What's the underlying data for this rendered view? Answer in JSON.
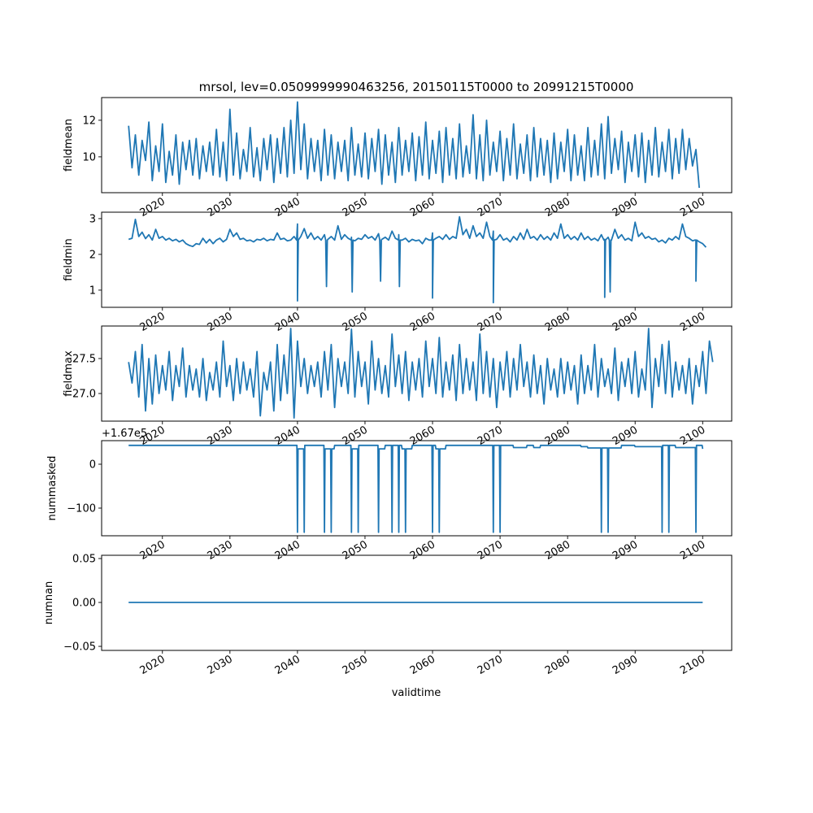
{
  "chart_data": {
    "type": "line",
    "title": "mrsol, lev=0.0509999990463256, 20150115T0000 to 20991215T0000",
    "xlabel": "validtime",
    "xlim": [
      2011.0,
      2104.3
    ],
    "xticks": [
      2020,
      2030,
      2040,
      2050,
      2060,
      2070,
      2080,
      2090,
      2100
    ],
    "xtick_labels": [
      "2020",
      "2030",
      "2040",
      "2050",
      "2060",
      "2070",
      "2080",
      "2090",
      "2100"
    ],
    "panels": [
      {
        "ylabel": "fieldmean",
        "ylim": [
          8.04,
          13.24
        ],
        "yticks": [
          10,
          12
        ],
        "ytick_labels": [
          "10",
          "12"
        ],
        "x_start": 2015.0,
        "x_step": 0.5,
        "values": [
          11.7,
          9.4,
          11.2,
          9.0,
          10.9,
          9.8,
          11.9,
          8.7,
          10.6,
          9.2,
          11.8,
          8.6,
          10.3,
          9.0,
          11.2,
          8.5,
          10.8,
          9.3,
          10.9,
          9.0,
          11.0,
          8.8,
          10.6,
          9.2,
          10.8,
          9.0,
          11.5,
          8.9,
          10.8,
          8.7,
          12.6,
          9.0,
          11.3,
          8.8,
          10.4,
          9.2,
          11.6,
          8.9,
          10.5,
          8.7,
          11.0,
          9.3,
          11.2,
          8.6,
          11.0,
          9.1,
          11.6,
          8.9,
          12.0,
          9.1,
          13.0,
          9.3,
          11.8,
          8.8,
          11.0,
          9.2,
          10.9,
          8.7,
          11.5,
          9.0,
          11.2,
          8.8,
          10.8,
          9.2,
          10.9,
          8.7,
          11.6,
          9.0,
          10.7,
          8.9,
          11.3,
          8.8,
          11.0,
          9.2,
          11.5,
          8.5,
          11.2,
          9.0,
          10.8,
          8.6,
          11.6,
          9.0,
          10.9,
          9.2,
          11.3,
          8.7,
          11.1,
          9.0,
          11.9,
          8.8,
          10.9,
          9.1,
          11.4,
          8.6,
          11.6,
          9.0,
          11.0,
          8.8,
          11.8,
          8.9,
          10.6,
          9.1,
          12.3,
          8.8,
          11.2,
          8.7,
          12.0,
          9.0,
          10.8,
          9.2,
          11.4,
          8.7,
          11.0,
          9.0,
          11.8,
          8.8,
          10.7,
          9.1,
          11.2,
          8.7,
          11.6,
          8.9,
          11.0,
          9.0,
          10.9,
          8.6,
          11.3,
          8.8,
          10.8,
          9.2,
          11.5,
          8.7,
          11.2,
          9.0,
          10.6,
          8.7,
          11.6,
          8.9,
          10.9,
          9.0,
          11.8,
          8.8,
          12.2,
          9.1,
          11.0,
          9.3,
          11.4,
          8.6,
          10.8,
          9.2,
          11.2,
          8.9,
          11.3,
          8.6,
          10.9,
          9.0,
          11.6,
          8.9,
          10.8,
          9.2,
          11.5,
          8.8,
          11.0,
          9.1,
          11.5,
          9.3,
          11.0,
          9.5,
          10.4,
          8.3
        ]
      },
      {
        "ylabel": "fieldmin",
        "ylim": [
          0.52,
          3.18
        ],
        "yticks": [
          1,
          2,
          3
        ],
        "ytick_labels": [
          "1",
          "2",
          "3"
        ],
        "x_start": 2015.0,
        "x_step": 0.5,
        "values": [
          2.42,
          2.45,
          2.98,
          2.5,
          2.62,
          2.44,
          2.55,
          2.4,
          2.7,
          2.45,
          2.5,
          2.4,
          2.45,
          2.38,
          2.42,
          2.35,
          2.4,
          2.3,
          2.25,
          2.22,
          2.3,
          2.28,
          2.45,
          2.32,
          2.42,
          2.3,
          2.4,
          2.45,
          2.35,
          2.42,
          2.7,
          2.5,
          2.6,
          2.42,
          2.45,
          2.38,
          2.4,
          2.35,
          2.42,
          2.4,
          2.45,
          2.38,
          2.42,
          2.4,
          2.6,
          2.42,
          2.45,
          2.38,
          2.4,
          2.5,
          2.85,
          2.5,
          2.72,
          2.45,
          2.6,
          2.42,
          2.5,
          2.4,
          2.55,
          2.42,
          2.5,
          2.4,
          2.8,
          2.42,
          2.55,
          2.45,
          2.48,
          2.38,
          2.45,
          2.42,
          2.55,
          2.45,
          2.5,
          2.4,
          2.58,
          2.42,
          2.48,
          2.4,
          2.65,
          2.45,
          2.55,
          2.4,
          2.45,
          2.35,
          2.42,
          2.38,
          2.4,
          2.3,
          2.45,
          2.4,
          2.6,
          2.45,
          2.5,
          2.42,
          2.55,
          2.42,
          2.5,
          2.45,
          3.05,
          2.55,
          2.7,
          2.45,
          2.8,
          2.5,
          2.6,
          2.45,
          2.9,
          2.5,
          2.65,
          2.42,
          2.55,
          2.4,
          2.45,
          2.35,
          2.5,
          2.4,
          2.6,
          2.42,
          2.7,
          2.45,
          2.5,
          2.4,
          2.55,
          2.42,
          2.5,
          2.4,
          2.6,
          2.45,
          2.85,
          2.45,
          2.55,
          2.42,
          2.5,
          2.4,
          2.6,
          2.42,
          2.5,
          2.4,
          2.45,
          2.38,
          2.55,
          2.42,
          2.48,
          2.4,
          2.7,
          2.45,
          2.55,
          2.4,
          2.45,
          2.38,
          2.9,
          2.5,
          2.6,
          2.45,
          2.5,
          2.42,
          2.45,
          2.35,
          2.4,
          2.32,
          2.45,
          2.4,
          2.5,
          2.42,
          2.85,
          2.5,
          2.45,
          2.38,
          2.4,
          2.35,
          2.3,
          2.2
        ],
        "dips": [
          [
            2040.0,
            0.7
          ],
          [
            2044.3,
            1.1
          ],
          [
            2048.1,
            0.95
          ],
          [
            2052.3,
            1.25
          ],
          [
            2055.1,
            1.1
          ],
          [
            2060.0,
            0.78
          ],
          [
            2069.0,
            0.65
          ],
          [
            2085.5,
            0.8
          ],
          [
            2086.3,
            0.95
          ],
          [
            2099.0,
            1.25
          ]
        ]
      },
      {
        "ylabel": "fieldmax",
        "ylim": [
          26.605,
          27.965
        ],
        "yticks": [
          27.0,
          27.5
        ],
        "ytick_labels": [
          "27.0",
          "27.5"
        ],
        "x_start": 2015.0,
        "x_step": 0.5,
        "values": [
          27.45,
          27.15,
          27.6,
          26.95,
          27.7,
          26.75,
          27.5,
          26.85,
          27.55,
          27.0,
          27.4,
          27.05,
          27.6,
          26.9,
          27.4,
          27.1,
          27.65,
          26.95,
          27.4,
          27.05,
          27.35,
          26.95,
          27.5,
          26.9,
          27.3,
          27.05,
          27.45,
          26.95,
          27.75,
          27.1,
          27.4,
          26.9,
          27.5,
          27.0,
          27.45,
          27.05,
          27.35,
          26.95,
          27.6,
          26.68,
          27.3,
          27.05,
          27.45,
          26.75,
          27.7,
          26.9,
          27.55,
          27.0,
          27.93,
          26.65,
          27.75,
          27.1,
          27.5,
          27.0,
          27.4,
          27.1,
          27.45,
          26.95,
          27.6,
          27.05,
          27.7,
          26.8,
          27.5,
          27.1,
          27.45,
          27.0,
          27.92,
          26.95,
          27.6,
          27.1,
          27.45,
          26.85,
          27.75,
          27.05,
          27.5,
          27.0,
          27.4,
          26.95,
          27.85,
          27.1,
          27.55,
          27.0,
          27.6,
          26.9,
          27.45,
          27.05,
          27.5,
          26.95,
          27.75,
          27.1,
          27.5,
          27.0,
          27.8,
          26.95,
          27.45,
          27.05,
          27.55,
          26.9,
          27.7,
          27.0,
          27.5,
          27.05,
          27.45,
          26.9,
          27.85,
          27.0,
          27.6,
          26.95,
          27.5,
          26.8,
          27.45,
          27.05,
          27.6,
          26.95,
          27.5,
          27.05,
          27.7,
          27.1,
          27.45,
          26.95,
          27.55,
          27.0,
          27.4,
          26.85,
          27.5,
          27.05,
          27.35,
          26.95,
          27.5,
          27.0,
          27.45,
          27.05,
          27.4,
          26.85,
          27.55,
          27.0,
          27.4,
          27.05,
          27.7,
          26.95,
          27.5,
          27.1,
          27.35,
          27.0,
          27.65,
          26.9,
          27.45,
          27.1,
          27.5,
          27.0,
          27.6,
          26.95,
          27.35,
          27.05,
          27.93,
          26.8,
          27.5,
          27.1,
          27.7,
          27.0,
          27.75,
          26.95,
          27.45,
          27.05,
          27.4,
          27.0,
          27.5,
          26.85,
          27.4,
          27.1,
          27.6,
          27.0,
          27.75,
          27.45
        ]
      },
      {
        "ylabel": "nummasked",
        "offset_text": "+1.67e5",
        "ylim": [
          -163,
          53.7
        ],
        "yticks": [
          0,
          -100
        ],
        "ytick_labels": [
          "0",
          "−100"
        ],
        "x_range": [
          2015.0,
          2100.0
        ],
        "levels": [
          [
            2015,
            43
          ],
          [
            2040,
            35
          ],
          [
            2041,
            43
          ],
          [
            2044,
            35
          ],
          [
            2045.5,
            43
          ],
          [
            2048,
            35
          ],
          [
            2049,
            43
          ],
          [
            2052,
            35
          ],
          [
            2053,
            43
          ],
          [
            2055.5,
            35
          ],
          [
            2057,
            43
          ],
          [
            2060.5,
            35
          ],
          [
            2062,
            43
          ],
          [
            2072,
            38
          ],
          [
            2074,
            43
          ],
          [
            2075,
            38
          ],
          [
            2076,
            43
          ],
          [
            2082,
            40
          ],
          [
            2083,
            37
          ],
          [
            2088,
            43
          ],
          [
            2090,
            40
          ],
          [
            2094,
            43
          ],
          [
            2096,
            38
          ],
          [
            2099,
            43
          ],
          [
            2100,
            35
          ]
        ],
        "drop_value": -155,
        "drops": [
          2040.0,
          2041.0,
          2044.0,
          2045.0,
          2048.0,
          2049.0,
          2052.0,
          2054.0,
          2055.0,
          2056.0,
          2060.0,
          2061.0,
          2069.0,
          2070.0,
          2085.0,
          2086.0,
          2094.0,
          2095.0,
          2099.0
        ]
      },
      {
        "ylabel": "numnan",
        "ylim": [
          -0.0546,
          0.0537
        ],
        "yticks": [
          0.05,
          0.0,
          -0.05
        ],
        "ytick_labels": [
          "0.05",
          "0.00",
          "−0.05"
        ],
        "x_range": [
          2015.0,
          2100.0
        ],
        "constant": 0.0
      }
    ]
  }
}
